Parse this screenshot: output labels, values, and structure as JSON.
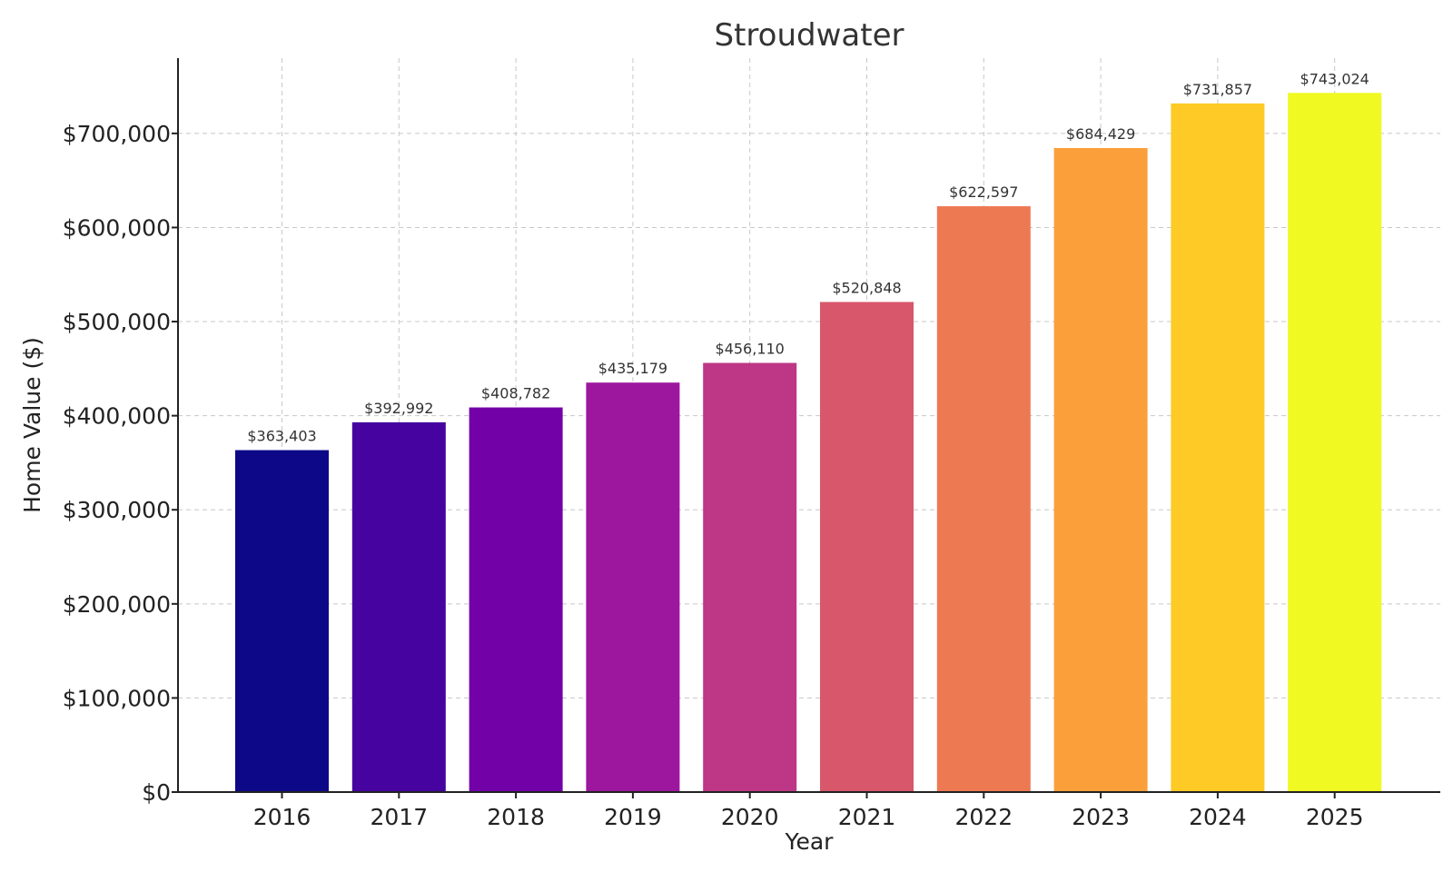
{
  "chart_data": {
    "type": "bar",
    "title": "Stroudwater",
    "xlabel": "Year",
    "ylabel": "Home Value ($)",
    "categories": [
      "2016",
      "2017",
      "2018",
      "2019",
      "2020",
      "2021",
      "2022",
      "2023",
      "2024",
      "2025"
    ],
    "values": [
      363403,
      392992,
      408782,
      435179,
      456110,
      520848,
      622597,
      684429,
      731857,
      743024
    ],
    "value_labels": [
      "$363,403",
      "$392,992",
      "$408,782",
      "$435,179",
      "$456,110",
      "$520,848",
      "$622,597",
      "$684,429",
      "$731,857",
      "$743,024"
    ],
    "ylim": [
      0,
      780000
    ],
    "yticks": [
      0,
      100000,
      200000,
      300000,
      400000,
      500000,
      600000,
      700000
    ],
    "ytick_labels": [
      "$0",
      "$100,000",
      "$200,000",
      "$300,000",
      "$400,000",
      "$500,000",
      "$600,000",
      "$700,000"
    ],
    "grid": true,
    "bar_colors": [
      "#0d0887",
      "#46039f",
      "#7201a8",
      "#9c179e",
      "#bd3786",
      "#d8576b",
      "#ed7953",
      "#fb9f3a",
      "#fdca26",
      "#f0f921"
    ]
  }
}
